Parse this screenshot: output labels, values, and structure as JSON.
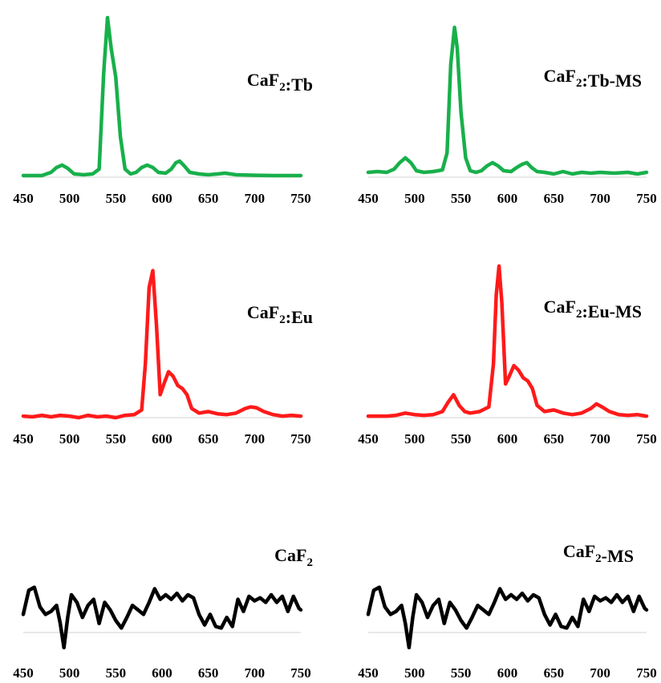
{
  "chart_data": [
    {
      "type": "line",
      "title": "CaF₂:Tb",
      "xlabel": "",
      "ylabel": "",
      "xlim": [
        450,
        750
      ],
      "ylim": [
        0,
        1.0
      ],
      "x_ticks": [
        "450",
        "500",
        "550",
        "600",
        "650",
        "700",
        "750"
      ],
      "series": [
        {
          "color": "#18b04b",
          "x": [
            450,
            470,
            480,
            486,
            492,
            498,
            505,
            515,
            525,
            532,
            537,
            541,
            545,
            550,
            555,
            560,
            566,
            572,
            578,
            584,
            590,
            596,
            604,
            610,
            615,
            619,
            624,
            630,
            640,
            650,
            660,
            668,
            680,
            700,
            720,
            750
          ],
          "y": [
            0.01,
            0.01,
            0.03,
            0.06,
            0.075,
            0.055,
            0.02,
            0.015,
            0.02,
            0.05,
            0.65,
            0.99,
            0.8,
            0.62,
            0.25,
            0.05,
            0.02,
            0.03,
            0.06,
            0.075,
            0.06,
            0.03,
            0.025,
            0.05,
            0.09,
            0.1,
            0.07,
            0.03,
            0.02,
            0.015,
            0.02,
            0.025,
            0.015,
            0.012,
            0.01,
            0.01
          ]
        }
      ]
    },
    {
      "type": "line",
      "title": "CaF₂:Tb-MS",
      "xlabel": "",
      "ylabel": "",
      "xlim": [
        450,
        750
      ],
      "ylim": [
        0,
        1.0
      ],
      "x_ticks": [
        "450",
        "500",
        "550",
        "600",
        "650",
        "700",
        "750"
      ],
      "series": [
        {
          "color": "#18b04b",
          "x": [
            450,
            460,
            470,
            478,
            484,
            490,
            496,
            502,
            510,
            520,
            530,
            535,
            539,
            543,
            546,
            550,
            555,
            560,
            566,
            572,
            578,
            584,
            590,
            596,
            604,
            610,
            616,
            621,
            626,
            632,
            640,
            650,
            660,
            670,
            680,
            690,
            700,
            715,
            730,
            740,
            750
          ],
          "y": [
            0.03,
            0.035,
            0.03,
            0.05,
            0.09,
            0.12,
            0.09,
            0.04,
            0.03,
            0.035,
            0.045,
            0.15,
            0.7,
            0.93,
            0.8,
            0.4,
            0.12,
            0.04,
            0.03,
            0.04,
            0.07,
            0.09,
            0.07,
            0.04,
            0.035,
            0.06,
            0.08,
            0.09,
            0.06,
            0.035,
            0.03,
            0.02,
            0.035,
            0.02,
            0.03,
            0.025,
            0.03,
            0.025,
            0.03,
            0.02,
            0.03
          ]
        }
      ]
    },
    {
      "type": "line",
      "title": "CaF₂:Eu",
      "xlabel": "",
      "ylabel": "",
      "xlim": [
        450,
        750
      ],
      "ylim": [
        0,
        1.0
      ],
      "x_ticks": [
        "450",
        "500",
        "550",
        "600",
        "650",
        "700",
        "750"
      ],
      "series": [
        {
          "color": "#ff1a1a",
          "x": [
            450,
            460,
            470,
            480,
            490,
            500,
            510,
            520,
            530,
            540,
            550,
            560,
            570,
            578,
            582,
            586,
            590,
            594,
            598,
            602,
            607,
            612,
            617,
            622,
            627,
            632,
            640,
            650,
            660,
            670,
            680,
            690,
            696,
            702,
            710,
            720,
            730,
            740,
            750
          ],
          "y": [
            0.01,
            0.005,
            0.015,
            0.005,
            0.015,
            0.01,
            0.0,
            0.015,
            0.005,
            0.01,
            0.0,
            0.015,
            0.02,
            0.05,
            0.35,
            0.85,
            0.96,
            0.6,
            0.15,
            0.22,
            0.3,
            0.27,
            0.21,
            0.19,
            0.15,
            0.06,
            0.03,
            0.04,
            0.025,
            0.02,
            0.03,
            0.06,
            0.07,
            0.065,
            0.04,
            0.02,
            0.01,
            0.015,
            0.01
          ]
        }
      ]
    },
    {
      "type": "line",
      "title": "CaF₂:Eu-MS",
      "xlabel": "",
      "ylabel": "",
      "xlim": [
        450,
        750
      ],
      "ylim": [
        0,
        1.0
      ],
      "x_ticks": [
        "450",
        "500",
        "550",
        "600",
        "650",
        "700",
        "750"
      ],
      "series": [
        {
          "color": "#ff1a1a",
          "x": [
            450,
            460,
            470,
            480,
            490,
            500,
            510,
            520,
            530,
            536,
            542,
            548,
            554,
            560,
            570,
            580,
            585,
            588,
            591,
            594,
            598,
            602,
            607,
            612,
            617,
            622,
            627,
            632,
            640,
            650,
            660,
            670,
            680,
            690,
            696,
            702,
            710,
            720,
            730,
            740,
            750
          ],
          "y": [
            0.01,
            0.01,
            0.01,
            0.015,
            0.03,
            0.02,
            0.015,
            0.02,
            0.04,
            0.1,
            0.15,
            0.08,
            0.04,
            0.03,
            0.04,
            0.07,
            0.35,
            0.8,
            0.99,
            0.75,
            0.22,
            0.27,
            0.34,
            0.31,
            0.26,
            0.24,
            0.19,
            0.08,
            0.04,
            0.05,
            0.03,
            0.02,
            0.03,
            0.06,
            0.09,
            0.07,
            0.04,
            0.02,
            0.015,
            0.02,
            0.01
          ]
        }
      ]
    },
    {
      "type": "line",
      "title": "CaF₂",
      "xlabel": "",
      "ylabel": "",
      "xlim": [
        450,
        750
      ],
      "ylim": [
        0,
        1.0
      ],
      "x_ticks": [
        "450",
        "500",
        "550",
        "600",
        "650",
        "700",
        "750"
      ],
      "series": [
        {
          "color": "#000000",
          "x": [
            450,
            456,
            462,
            468,
            474,
            480,
            486,
            490,
            494,
            498,
            502,
            508,
            514,
            520,
            526,
            532,
            538,
            544,
            550,
            556,
            562,
            568,
            574,
            580,
            586,
            592,
            598,
            604,
            610,
            616,
            622,
            628,
            634,
            640,
            646,
            652,
            658,
            664,
            670,
            676,
            682,
            688,
            694,
            700,
            706,
            712,
            718,
            724,
            730,
            736,
            742,
            748,
            750
          ],
          "y": [
            0.12,
            0.28,
            0.3,
            0.17,
            0.12,
            0.14,
            0.18,
            0.06,
            -0.1,
            0.1,
            0.25,
            0.2,
            0.1,
            0.18,
            0.22,
            0.06,
            0.2,
            0.15,
            0.08,
            0.03,
            0.1,
            0.18,
            0.15,
            0.12,
            0.2,
            0.29,
            0.22,
            0.25,
            0.22,
            0.26,
            0.21,
            0.25,
            0.23,
            0.12,
            0.05,
            0.12,
            0.04,
            0.03,
            0.1,
            0.04,
            0.22,
            0.14,
            0.24,
            0.21,
            0.23,
            0.2,
            0.25,
            0.2,
            0.24,
            0.14,
            0.24,
            0.16,
            0.15
          ]
        }
      ]
    },
    {
      "type": "line",
      "title": "CaF₂-MS",
      "xlabel": "",
      "ylabel": "",
      "xlim": [
        450,
        750
      ],
      "ylim": [
        0,
        1.0
      ],
      "x_ticks": [
        "450",
        "500",
        "550",
        "600",
        "650",
        "700",
        "750"
      ],
      "series": [
        {
          "color": "#000000",
          "x": [
            450,
            456,
            462,
            468,
            474,
            480,
            486,
            490,
            494,
            498,
            502,
            508,
            514,
            520,
            526,
            532,
            538,
            544,
            550,
            556,
            562,
            568,
            574,
            580,
            586,
            592,
            598,
            604,
            610,
            616,
            622,
            628,
            634,
            640,
            646,
            652,
            658,
            664,
            670,
            676,
            682,
            688,
            694,
            700,
            706,
            712,
            718,
            724,
            730,
            736,
            742,
            748,
            750
          ],
          "y": [
            0.12,
            0.28,
            0.3,
            0.17,
            0.12,
            0.14,
            0.18,
            0.06,
            -0.1,
            0.1,
            0.25,
            0.2,
            0.1,
            0.18,
            0.22,
            0.06,
            0.2,
            0.15,
            0.08,
            0.03,
            0.1,
            0.18,
            0.15,
            0.12,
            0.2,
            0.29,
            0.22,
            0.25,
            0.22,
            0.26,
            0.21,
            0.25,
            0.23,
            0.12,
            0.05,
            0.12,
            0.04,
            0.03,
            0.1,
            0.04,
            0.22,
            0.14,
            0.24,
            0.21,
            0.23,
            0.2,
            0.25,
            0.2,
            0.24,
            0.14,
            0.24,
            0.16,
            0.15
          ]
        }
      ]
    }
  ]
}
